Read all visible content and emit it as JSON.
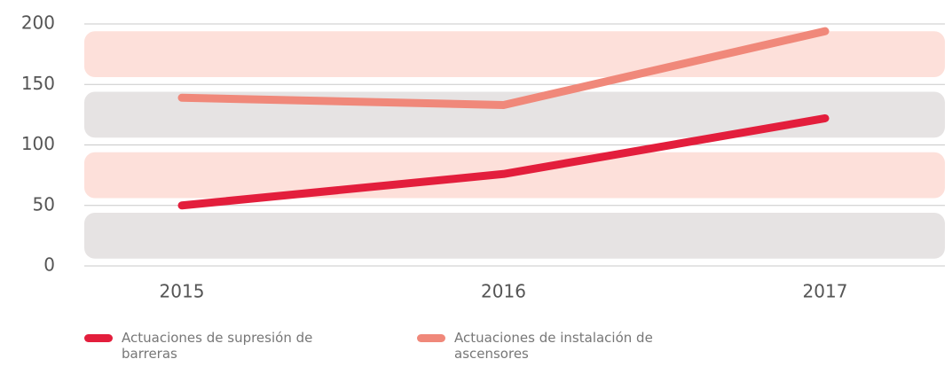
{
  "chart_data": {
    "type": "line",
    "categories": [
      "2015",
      "2016",
      "2017"
    ],
    "series": [
      {
        "name": "Actuaciones de supresión de barreras",
        "color": "#e31e3c",
        "values": [
          50,
          76,
          122
        ]
      },
      {
        "name": "Actuaciones de instalación de ascensores",
        "color": "#f0887a",
        "values": [
          139,
          133,
          194
        ]
      }
    ],
    "ylim": [
      0,
      200
    ],
    "yticks": [
      0,
      50,
      100,
      150,
      200
    ],
    "grid": true
  }
}
